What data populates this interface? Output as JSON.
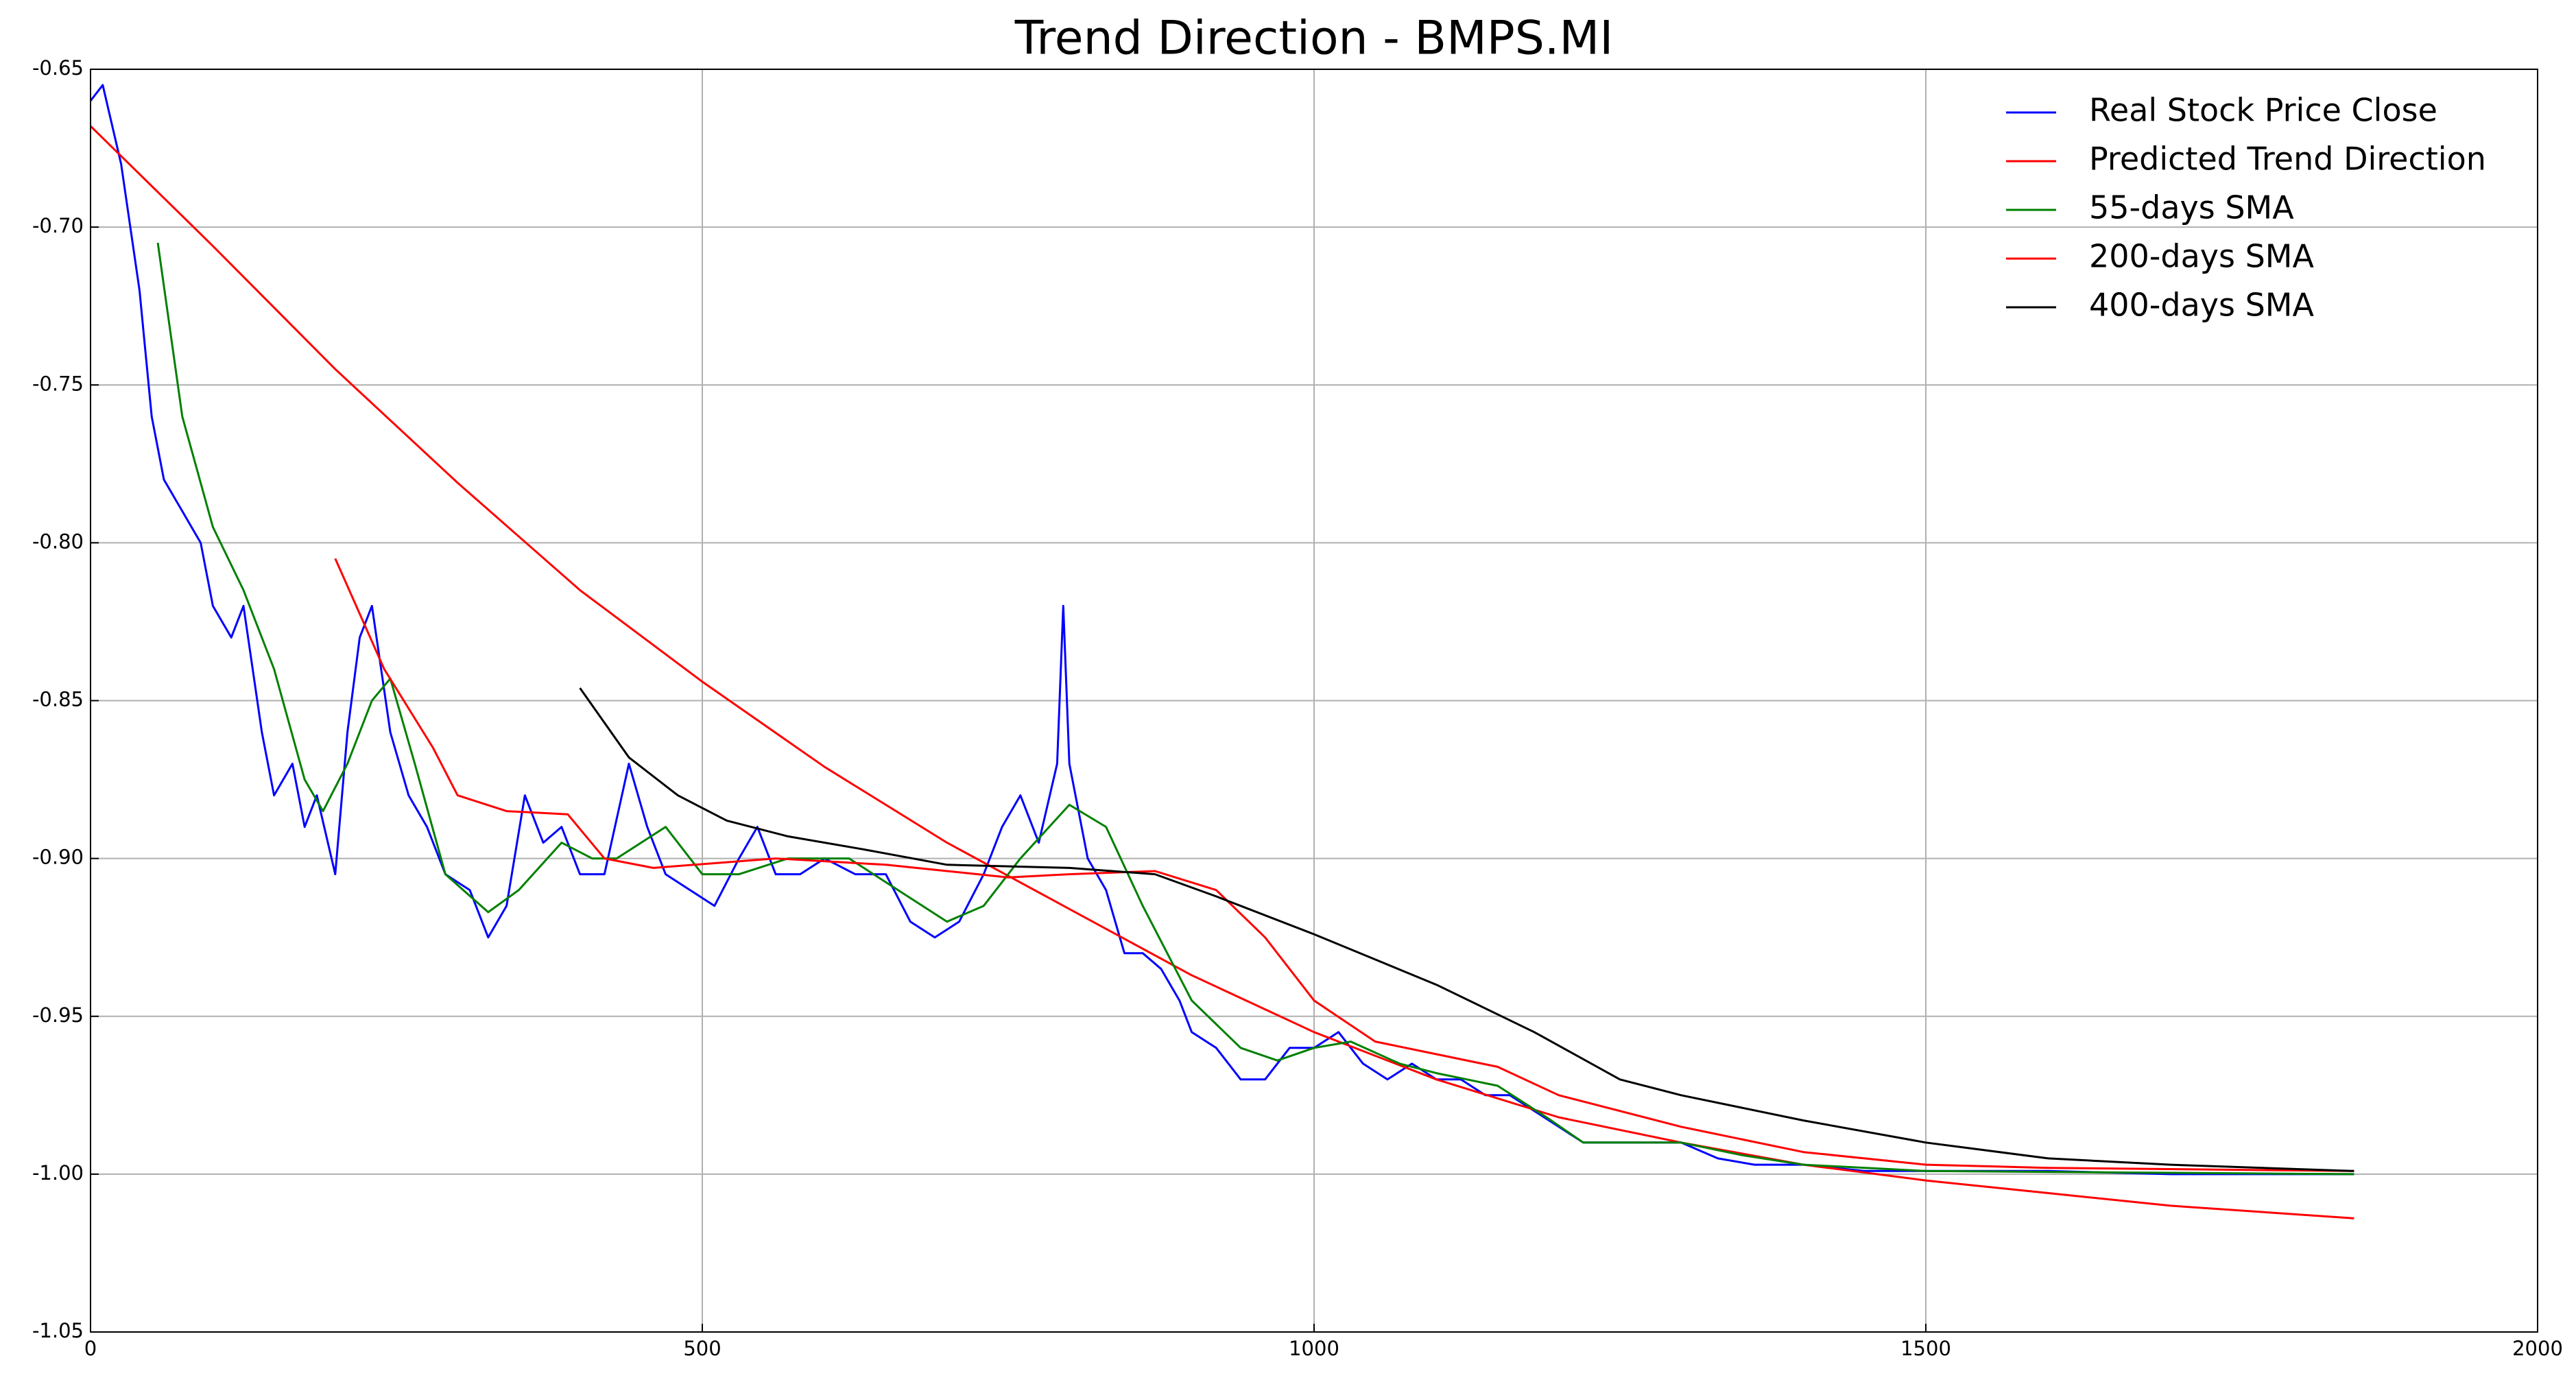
{
  "chart_data": {
    "type": "line",
    "title": "Trend Direction - BMPS.MI",
    "xlim": [
      0,
      2000
    ],
    "xticks": [
      0,
      500,
      1000,
      1500,
      2000
    ],
    "ylim": [
      -1.05,
      -0.65
    ],
    "yticks": [
      -0.65,
      {
        "value": -0.7,
        "label": "-0.70"
      },
      -0.75,
      {
        "value": -0.8,
        "label": "-0.80"
      },
      -0.85,
      {
        "value": -0.9,
        "label": "-0.90"
      },
      -0.95,
      {
        "value": -1.0,
        "label": "-1.00"
      },
      -1.05
    ],
    "grid": true,
    "legend": "upper right",
    "series": [
      {
        "name": "Real Stock Price Close",
        "color": "#0000ff",
        "x": [
          0,
          10,
          25,
          40,
          50,
          60,
          75,
          90,
          100,
          115,
          125,
          140,
          150,
          165,
          175,
          185,
          200,
          210,
          220,
          230,
          245,
          260,
          275,
          290,
          310,
          325,
          340,
          355,
          370,
          385,
          400,
          420,
          440,
          455,
          470,
          490,
          510,
          530,
          545,
          560,
          580,
          600,
          625,
          650,
          670,
          690,
          710,
          730,
          745,
          760,
          775,
          790,
          795,
          800,
          815,
          830,
          845,
          860,
          875,
          890,
          900,
          920,
          940,
          960,
          980,
          1000,
          1020,
          1040,
          1060,
          1080,
          1100,
          1120,
          1140,
          1160,
          1180,
          1200,
          1220,
          1250,
          1280,
          1300,
          1330,
          1360,
          1400,
          1450,
          1500,
          1600,
          1700,
          1850
        ],
        "values": [
          -0.66,
          -0.655,
          -0.68,
          -0.72,
          -0.76,
          -0.78,
          -0.79,
          -0.8,
          -0.82,
          -0.83,
          -0.82,
          -0.86,
          -0.88,
          -0.87,
          -0.89,
          -0.88,
          -0.905,
          -0.86,
          -0.83,
          -0.82,
          -0.86,
          -0.88,
          -0.89,
          -0.905,
          -0.91,
          -0.925,
          -0.915,
          -0.88,
          -0.895,
          -0.89,
          -0.905,
          -0.905,
          -0.87,
          -0.89,
          -0.905,
          -0.91,
          -0.915,
          -0.9,
          -0.89,
          -0.905,
          -0.905,
          -0.9,
          -0.905,
          -0.905,
          -0.92,
          -0.925,
          -0.92,
          -0.905,
          -0.89,
          -0.88,
          -0.895,
          -0.87,
          -0.82,
          -0.87,
          -0.9,
          -0.91,
          -0.93,
          -0.93,
          -0.935,
          -0.945,
          -0.955,
          -0.96,
          -0.97,
          -0.97,
          -0.96,
          -0.96,
          -0.955,
          -0.965,
          -0.97,
          -0.965,
          -0.97,
          -0.97,
          -0.975,
          -0.975,
          -0.98,
          -0.985,
          -0.99,
          -0.99,
          -0.99,
          -0.99,
          -0.995,
          -0.997,
          -0.997,
          -0.999,
          -0.999,
          -0.999,
          -1.0,
          -1.0
        ]
      },
      {
        "name": "Predicted Trend Direction",
        "color": "#ff0000",
        "x": [
          0,
          100,
          200,
          300,
          400,
          500,
          600,
          700,
          800,
          900,
          1000,
          1100,
          1200,
          1300,
          1400,
          1500,
          1600,
          1700,
          1850
        ],
        "values": [
          -0.668,
          -0.706,
          -0.745,
          -0.781,
          -0.815,
          -0.844,
          -0.871,
          -0.895,
          -0.916,
          -0.937,
          -0.955,
          -0.97,
          -0.982,
          -0.99,
          -0.997,
          -1.002,
          -1.006,
          -1.01,
          -1.014
        ]
      },
      {
        "name": "55-days SMA",
        "color": "#008000",
        "x": [
          55,
          75,
          100,
          125,
          150,
          175,
          190,
          210,
          230,
          245,
          265,
          290,
          325,
          350,
          385,
          410,
          430,
          470,
          500,
          530,
          570,
          620,
          660,
          700,
          730,
          760,
          800,
          830,
          860,
          900,
          940,
          970,
          1000,
          1030,
          1070,
          1100,
          1150,
          1190,
          1220,
          1260,
          1300,
          1350,
          1400,
          1500,
          1850
        ],
        "values": [
          -0.705,
          -0.76,
          -0.795,
          -0.815,
          -0.84,
          -0.875,
          -0.885,
          -0.87,
          -0.85,
          -0.843,
          -0.87,
          -0.905,
          -0.917,
          -0.91,
          -0.895,
          -0.9,
          -0.9,
          -0.89,
          -0.905,
          -0.905,
          -0.9,
          -0.9,
          -0.91,
          -0.92,
          -0.915,
          -0.9,
          -0.883,
          -0.89,
          -0.915,
          -0.945,
          -0.96,
          -0.964,
          -0.96,
          -0.958,
          -0.965,
          -0.968,
          -0.972,
          -0.982,
          -0.99,
          -0.99,
          -0.99,
          -0.994,
          -0.997,
          -0.999,
          -1.0
        ]
      },
      {
        "name": "200-days SMA",
        "color": "#ff0000",
        "x": [
          200,
          240,
          280,
          300,
          340,
          390,
          420,
          460,
          560,
          650,
          750,
          800,
          870,
          920,
          960,
          1000,
          1050,
          1100,
          1150,
          1200,
          1300,
          1400,
          1500,
          1600,
          1850
        ],
        "values": [
          -0.805,
          -0.84,
          -0.865,
          -0.88,
          -0.885,
          -0.886,
          -0.9,
          -0.903,
          -0.9,
          -0.902,
          -0.906,
          -0.905,
          -0.904,
          -0.91,
          -0.925,
          -0.945,
          -0.958,
          -0.962,
          -0.966,
          -0.975,
          -0.985,
          -0.993,
          -0.997,
          -0.998,
          -0.999
        ]
      },
      {
        "name": "400-days SMA",
        "color": "#000000",
        "x": [
          400,
          440,
          480,
          520,
          570,
          630,
          700,
          800,
          870,
          920,
          1000,
          1100,
          1180,
          1250,
          1300,
          1400,
          1500,
          1600,
          1700,
          1850
        ],
        "values": [
          -0.846,
          -0.868,
          -0.88,
          -0.888,
          -0.893,
          -0.897,
          -0.902,
          -0.903,
          -0.905,
          -0.912,
          -0.924,
          -0.94,
          -0.955,
          -0.97,
          -0.975,
          -0.983,
          -0.99,
          -0.995,
          -0.997,
          -0.999
        ]
      }
    ]
  }
}
